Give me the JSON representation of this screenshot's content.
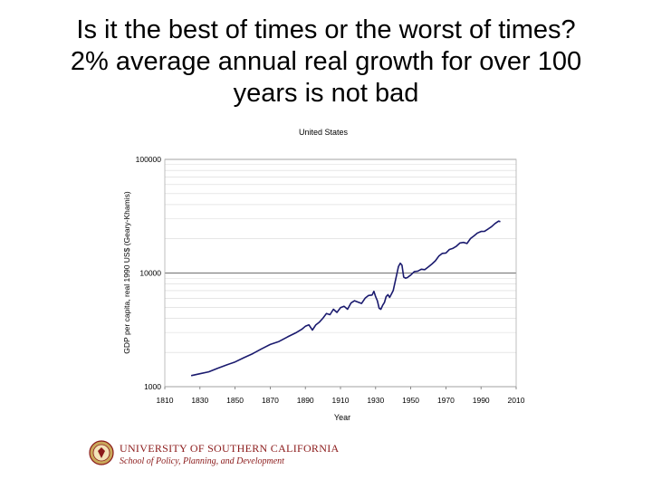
{
  "slide": {
    "title_lines": [
      "Is it the best of times or the worst of times?",
      "2% average annual real growth for over 100",
      "years is not bad"
    ]
  },
  "footer": {
    "org_line1": "UNIVERSITY OF SOUTHERN CALIFORNIA",
    "org_line2": "School of Policy, Planning, and Development",
    "logo_icon": "usc-seal-icon",
    "accent_color": "#8b1a1a"
  },
  "chart_data": {
    "type": "line",
    "title": "United States",
    "xlabel": "Year",
    "ylabel": "GDP per capita, real 1990 US$ (Geary-Khamis)",
    "y_scale": "log",
    "xlim": [
      1810,
      2010
    ],
    "ylim": [
      1000,
      100000
    ],
    "x_ticks": [
      1810,
      1830,
      1850,
      1870,
      1890,
      1910,
      1930,
      1950,
      1970,
      1990,
      2010
    ],
    "x_tick_labels": [
      "1810",
      "1830",
      "1850",
      "1870",
      "1890",
      "1910",
      "1930",
      "1950",
      "1970",
      "1990",
      "2010"
    ],
    "y_ticks": [
      1000,
      10000,
      100000
    ],
    "y_tick_labels": [
      "1000",
      "10000",
      "100000"
    ],
    "grid": true,
    "line_color": "#1a1a6e",
    "series": [
      {
        "x": [
          1825,
          1830,
          1835,
          1840,
          1845,
          1850,
          1855,
          1860,
          1865,
          1870,
          1875,
          1880,
          1885,
          1888,
          1890,
          1892,
          1894,
          1896,
          1898,
          1900,
          1902,
          1904,
          1906,
          1908,
          1910,
          1912,
          1914,
          1916,
          1918,
          1920,
          1922,
          1924,
          1926,
          1928,
          1929,
          1930,
          1931,
          1932,
          1933,
          1934,
          1935,
          1936,
          1937,
          1938,
          1939,
          1940,
          1941,
          1942,
          1943,
          1944,
          1945,
          1946,
          1947,
          1948,
          1950,
          1952,
          1954,
          1956,
          1958,
          1960,
          1962,
          1964,
          1966,
          1968,
          1970,
          1972,
          1974,
          1976,
          1978,
          1980,
          1982,
          1984,
          1986,
          1988,
          1990,
          1992,
          1994,
          1996,
          1998,
          2000,
          2001
        ],
        "y": [
          1250,
          1300,
          1350,
          1450,
          1550,
          1650,
          1800,
          1950,
          2150,
          2350,
          2500,
          2750,
          3000,
          3200,
          3400,
          3500,
          3150,
          3500,
          3700,
          4000,
          4400,
          4300,
          4800,
          4500,
          4950,
          5100,
          4800,
          5450,
          5700,
          5550,
          5400,
          6000,
          6350,
          6400,
          6900,
          6200,
          5700,
          4900,
          4800,
          5200,
          5500,
          6200,
          6450,
          6100,
          6550,
          7000,
          8200,
          9700,
          11400,
          12200,
          11700,
          9200,
          9000,
          9100,
          9600,
          10300,
          10400,
          10800,
          10700,
          11300,
          12000,
          12800,
          14100,
          14900,
          15000,
          16100,
          16500,
          17200,
          18400,
          18600,
          18200,
          20100,
          21200,
          22500,
          23200,
          23300,
          24400,
          25600,
          27300,
          28600,
          28300
        ]
      }
    ]
  }
}
